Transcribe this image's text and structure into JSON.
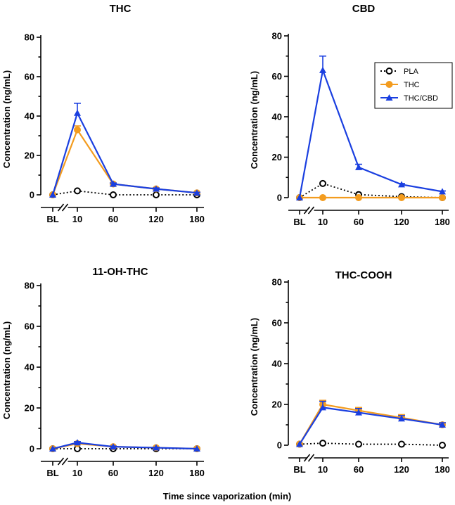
{
  "figure": {
    "xlabel": "Time since vaporization (min)"
  },
  "legend": {
    "entries": [
      {
        "name": "PLA",
        "color": "#000000",
        "marker": "open-circle",
        "line": "dotted"
      },
      {
        "name": "THC",
        "color": "#f39c1f",
        "marker": "filled-circle",
        "line": "solid"
      },
      {
        "name": "THC/CBD",
        "color": "#1a3fe0",
        "marker": "triangle",
        "line": "solid"
      }
    ]
  },
  "chart_data": [
    {
      "type": "line",
      "title": "THC",
      "categories": [
        "BL",
        "10",
        "60",
        "120",
        "180"
      ],
      "ylabel": "Concentration (ng/mL)",
      "ylim": [
        0,
        80
      ],
      "yticks": [
        0,
        20,
        40,
        60,
        80
      ],
      "series": [
        {
          "name": "PLA",
          "values": [
            0,
            2,
            0,
            0,
            0
          ],
          "errors": [
            0,
            0,
            0,
            0,
            0
          ]
        },
        {
          "name": "THC",
          "values": [
            0,
            33,
            5.5,
            3,
            1
          ],
          "errors": [
            0,
            2,
            0.5,
            0.5,
            0.3
          ]
        },
        {
          "name": "THC/CBD",
          "values": [
            0,
            41.5,
            5.5,
            3,
            1
          ],
          "errors": [
            0,
            5,
            0.5,
            0.5,
            0.3
          ]
        }
      ]
    },
    {
      "type": "line",
      "title": "CBD",
      "categories": [
        "BL",
        "10",
        "60",
        "120",
        "180"
      ],
      "ylabel": "Concentration (ng/mL)",
      "ylim": [
        0,
        80
      ],
      "yticks": [
        0,
        20,
        40,
        60,
        80
      ],
      "legend_position": "top-right",
      "series": [
        {
          "name": "PLA",
          "values": [
            0,
            7,
            1.5,
            0.5,
            0
          ],
          "errors": [
            0,
            0,
            0,
            0,
            0
          ]
        },
        {
          "name": "THC",
          "values": [
            0,
            0,
            0,
            0,
            0
          ],
          "errors": [
            0,
            0,
            0,
            0,
            0
          ]
        },
        {
          "name": "THC/CBD",
          "values": [
            0,
            63,
            15,
            6.5,
            3
          ],
          "errors": [
            0,
            7,
            1.5,
            0.5,
            0.3
          ]
        }
      ]
    },
    {
      "type": "line",
      "title": "11-OH-THC",
      "categories": [
        "BL",
        "10",
        "60",
        "120",
        "180"
      ],
      "ylabel": "Concentration (ng/mL)",
      "ylim": [
        0,
        80
      ],
      "yticks": [
        0,
        20,
        40,
        60,
        80
      ],
      "series": [
        {
          "name": "PLA",
          "values": [
            0,
            0,
            0,
            0,
            0
          ],
          "errors": [
            0,
            0,
            0,
            0,
            0
          ]
        },
        {
          "name": "THC",
          "values": [
            0,
            2.5,
            1,
            0.5,
            0
          ],
          "errors": [
            0,
            0.5,
            0.3,
            0.2,
            0
          ]
        },
        {
          "name": "THC/CBD",
          "values": [
            0,
            3,
            1,
            0.5,
            0
          ],
          "errors": [
            0,
            0.5,
            0.3,
            0.2,
            0
          ]
        }
      ]
    },
    {
      "type": "line",
      "title": "THC-COOH",
      "categories": [
        "BL",
        "10",
        "60",
        "120",
        "180"
      ],
      "ylabel": "Concentration (ng/mL)",
      "ylim": [
        0,
        80
      ],
      "yticks": [
        0,
        20,
        40,
        60,
        80
      ],
      "series": [
        {
          "name": "PLA",
          "values": [
            0.5,
            1,
            0.5,
            0.5,
            0
          ],
          "errors": [
            0,
            0,
            0,
            0,
            0
          ]
        },
        {
          "name": "THC",
          "values": [
            0.5,
            20,
            17,
            13.5,
            10
          ],
          "errors": [
            0,
            2,
            1.5,
            1.5,
            1
          ]
        },
        {
          "name": "THC/CBD",
          "values": [
            0.5,
            18.5,
            16,
            13,
            10
          ],
          "errors": [
            0,
            3,
            2,
            1.5,
            1
          ]
        }
      ]
    }
  ]
}
